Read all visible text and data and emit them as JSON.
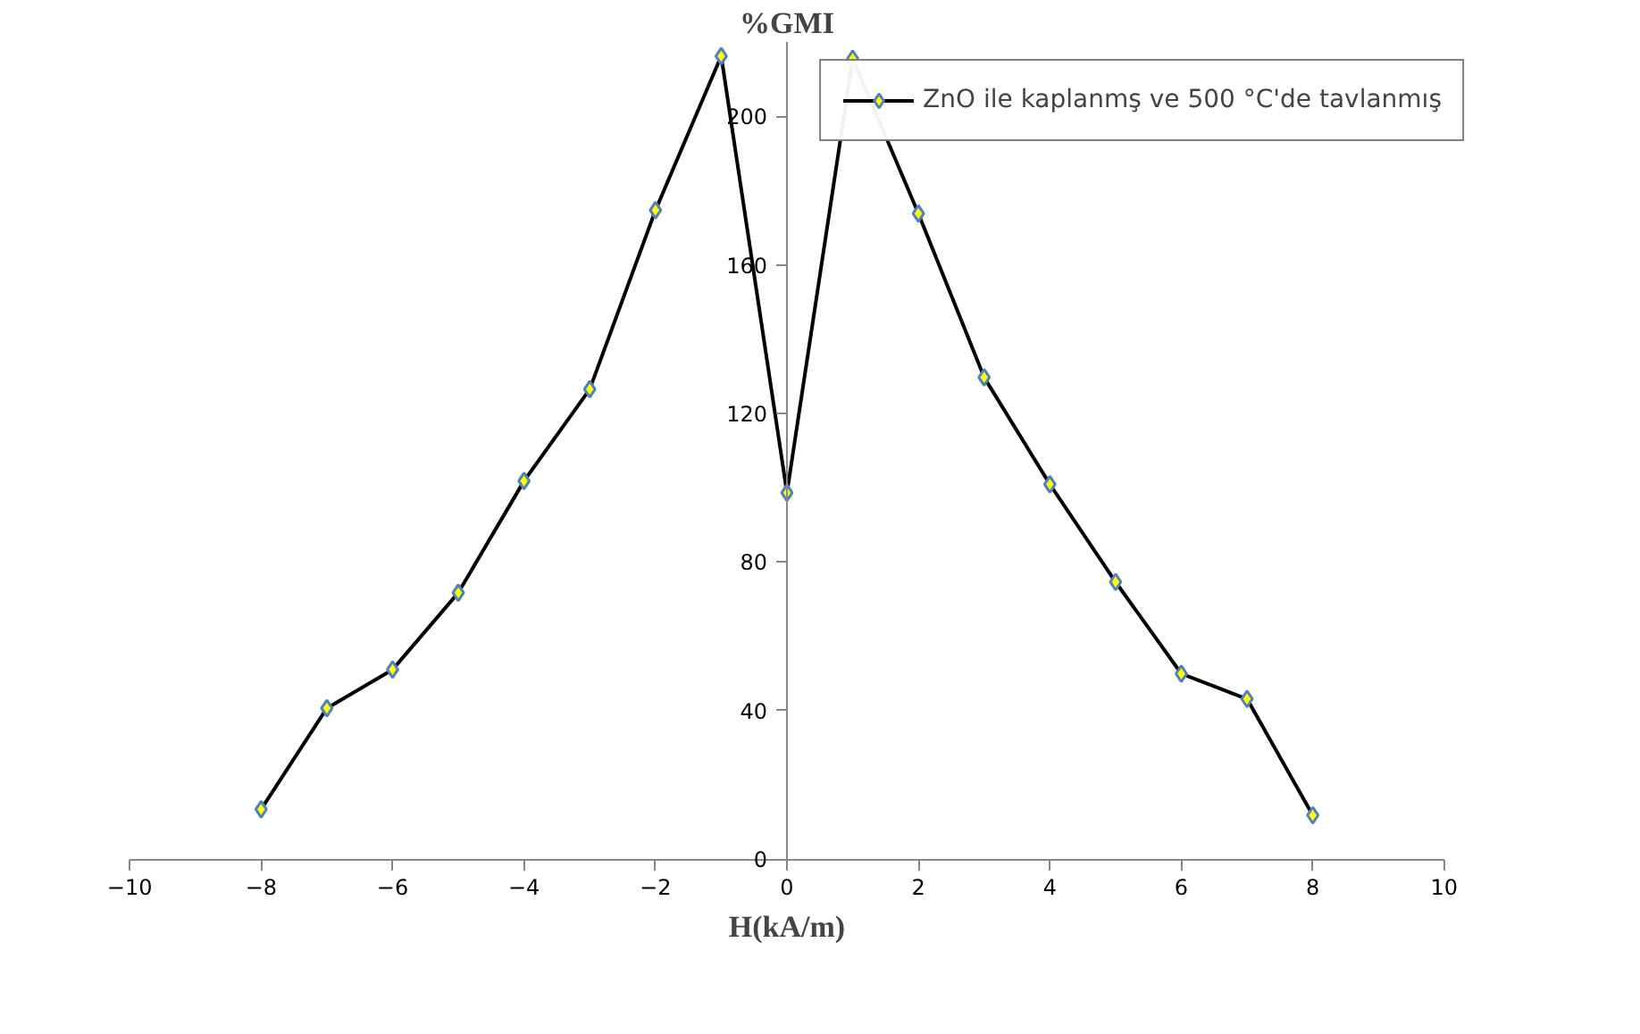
{
  "chart_data": {
    "type": "line",
    "xlabel": "H(kA/m)",
    "ylabel": "%GMI",
    "x": [
      -8,
      -7,
      -6,
      -5,
      -4,
      -3,
      -2,
      -1,
      0,
      1,
      2,
      3,
      4,
      5,
      6,
      7,
      8
    ],
    "series": [
      {
        "name": "ZnO ile kaplanmş ve 500 °C'de tavlanmış",
        "color": "#000000",
        "values": [
          13.4,
          40.6,
          51.0,
          71.7,
          101.8,
          126.5,
          174.7,
          216.2,
          98.6,
          215.5,
          173.8,
          129.7,
          100.9,
          74.6,
          49.9,
          43.1,
          11.8
        ]
      }
    ],
    "xlim": [
      -10,
      10
    ],
    "xticks": [
      -10,
      -8,
      -6,
      -4,
      -2,
      0,
      2,
      4,
      6,
      8,
      10
    ],
    "ylim": [
      0,
      220
    ],
    "yticks": [
      0,
      40,
      80,
      120,
      160,
      200
    ],
    "grid": false,
    "legend": "top right",
    "marker": "diamond",
    "line_style": "solid"
  }
}
